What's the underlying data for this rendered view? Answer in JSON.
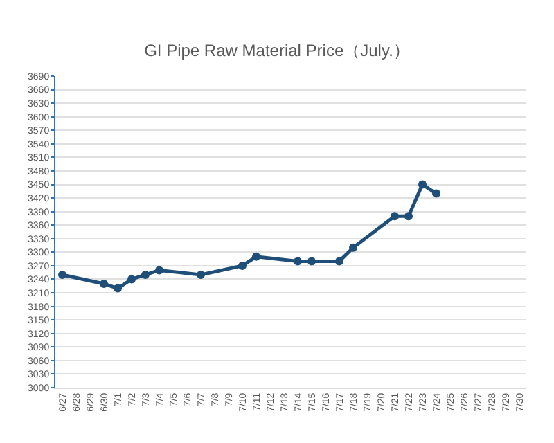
{
  "chart_data": {
    "type": "line",
    "title": "GI Pipe Raw Material Price（July.）",
    "categories": [
      "6/27",
      "6/28",
      "6/29",
      "6/30",
      "7/1",
      "7/2",
      "7/3",
      "7/4",
      "7/5",
      "7/6",
      "7/7",
      "7/8",
      "7/9",
      "7/10",
      "7/11",
      "7/12",
      "7/13",
      "7/14",
      "7/15",
      "7/16",
      "7/17",
      "7/18",
      "7/19",
      "7/20",
      "7/21",
      "7/22",
      "7/23",
      "7/24",
      "7/25",
      "7/26",
      "7/27",
      "7/28",
      "7/29",
      "7/30"
    ],
    "series": [
      {
        "color": "#1f4e79",
        "values": [
          3250,
          null,
          null,
          3230,
          3220,
          3240,
          3250,
          3260,
          null,
          null,
          3250,
          null,
          null,
          3270,
          3290,
          null,
          null,
          3280,
          3280,
          null,
          3280,
          3310,
          null,
          null,
          3380,
          3380,
          3450,
          3430,
          null,
          null,
          null,
          null,
          null,
          null
        ]
      }
    ],
    "ylim": [
      3000,
      3690
    ],
    "yticks": [
      3000,
      3030,
      3060,
      3090,
      3120,
      3150,
      3180,
      3210,
      3240,
      3270,
      3300,
      3330,
      3360,
      3390,
      3420,
      3450,
      3480,
      3510,
      3540,
      3570,
      3600,
      3630,
      3660,
      3690
    ],
    "grid": "y",
    "marker": "circle",
    "line_style": "solid"
  }
}
